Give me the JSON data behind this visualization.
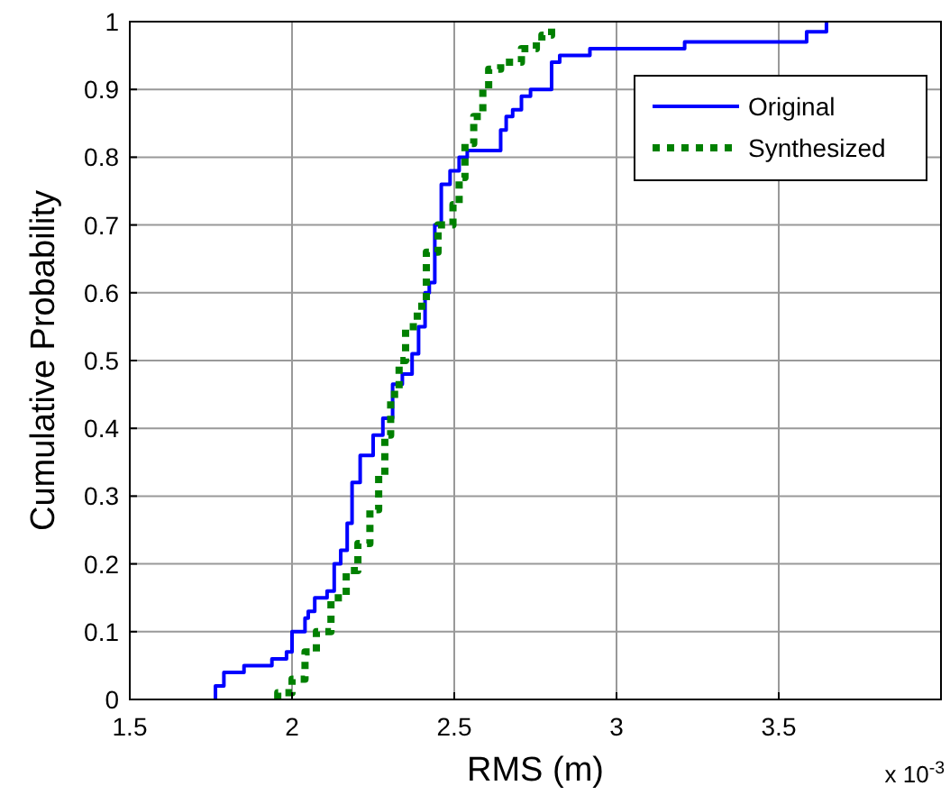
{
  "chart_data": {
    "type": "step",
    "xlabel": "RMS (m)",
    "ylabel": "Cumulative Probability",
    "annotations": [
      "x 10$^{-3}$"
    ],
    "xlim": [
      1.5,
      4
    ],
    "xticks": [
      1.5,
      2,
      2.5,
      3,
      3.5,
      {
        "value": 4,
        "label": null
      }
    ],
    "ylim": [
      0,
      1
    ],
    "yticks": [
      0,
      0.1,
      0.2,
      0.3,
      0.4,
      0.5,
      0.6,
      0.7,
      0.8,
      0.9,
      1
    ],
    "grid": true,
    "legend": "top right",
    "marker": "none",
    "series": [
      {
        "name": "Original",
        "color": "#0000ff",
        "line_style": "solid",
        "x": [
          1.764,
          1.764,
          1.79,
          1.852,
          1.938,
          1.983,
          2.0,
          2.04,
          2.05,
          2.07,
          2.108,
          2.13,
          2.15,
          2.17,
          2.185,
          2.21,
          2.25,
          2.28,
          2.31,
          2.34,
          2.37,
          2.39,
          2.41,
          2.423,
          2.44,
          2.46,
          2.487,
          2.515,
          2.54,
          2.643,
          2.66,
          2.68,
          2.707,
          2.735,
          2.8,
          2.825,
          2.918,
          3.21,
          3.586,
          3.647
        ],
        "values": [
          0,
          0.02,
          0.04,
          0.05,
          0.06,
          0.07,
          0.1,
          0.12,
          0.13,
          0.15,
          0.16,
          0.2,
          0.22,
          0.26,
          0.32,
          0.36,
          0.39,
          0.415,
          0.465,
          0.48,
          0.51,
          0.55,
          0.6,
          0.615,
          0.7,
          0.76,
          0.78,
          0.8,
          0.81,
          0.84,
          0.86,
          0.87,
          0.89,
          0.9,
          0.94,
          0.95,
          0.96,
          0.97,
          0.985,
          1.0
        ]
      },
      {
        "name": "Synthesized",
        "color": "#008000",
        "line_style": "dotted",
        "x": [
          1.956,
          1.956,
          2.0,
          2.04,
          2.075,
          2.12,
          2.167,
          2.203,
          2.24,
          2.267,
          2.286,
          2.304,
          2.33,
          2.35,
          2.386,
          2.414,
          2.45,
          2.496,
          2.515,
          2.533,
          2.56,
          2.588,
          2.606,
          2.643,
          2.707,
          2.753,
          2.77,
          2.8
        ],
        "values": [
          0,
          0.01,
          0.03,
          0.07,
          0.1,
          0.15,
          0.19,
          0.23,
          0.28,
          0.33,
          0.39,
          0.45,
          0.5,
          0.55,
          0.58,
          0.66,
          0.7,
          0.73,
          0.77,
          0.82,
          0.86,
          0.9,
          0.93,
          0.94,
          0.96,
          0.97,
          0.98,
          1.0
        ]
      }
    ]
  }
}
